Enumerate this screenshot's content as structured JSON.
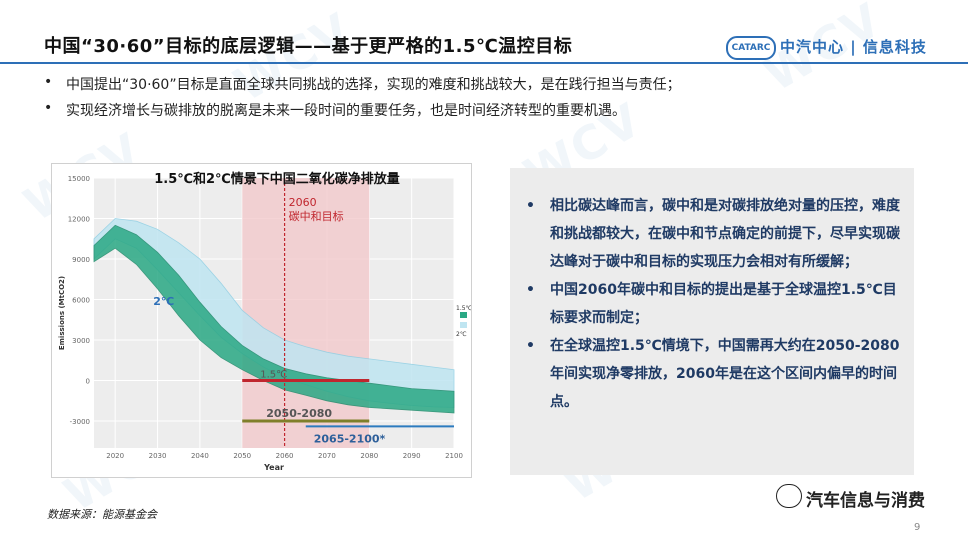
{
  "header": {
    "title": "中国“30·60”目标的底层逻辑——基于更严格的1.5℃温控目标",
    "logo_badge": "CATARC",
    "logo_text": "中汽中心 | 信息科技"
  },
  "bullets_top": [
    "中国提出“30·60”目标是直面全球共同挑战的选择，实现的难度和挑战较大，是在践行担当与责任；",
    "实现经济增长与碳排放的脱离是未来一段时间的重要任务，也是时间经济转型的重要机遇。"
  ],
  "bullet_char": "•",
  "chart_data": {
    "type": "area",
    "title": "1.5℃和2℃情景下中国二氧化碳净排放量",
    "xlabel": "Year",
    "ylabel": "Emissions (MtCO2)",
    "xlim": [
      2015,
      2100
    ],
    "ylim": [
      -5000,
      15000
    ],
    "xticks": [
      2020,
      2030,
      2040,
      2050,
      2060,
      2070,
      2080,
      2090,
      2100
    ],
    "yticks": [
      15000,
      12000,
      9000,
      6000,
      3000,
      0,
      -3000
    ],
    "legend": [
      "1.5℃",
      "2℃"
    ],
    "legend_position": "right",
    "colors": {
      "s15": "#2aa884",
      "s2": "#bfe5f1",
      "highlight": "#f2c6c8",
      "marker": "#c0262e",
      "bar2050": "#7f7f2a",
      "bar2065": "#2d7bbf"
    },
    "highlight_range": [
      2050,
      2080
    ],
    "vline_x": 2060,
    "vline_label_1": "2060",
    "vline_label_2": "碳中和目标",
    "series_2": {
      "name": "2℃",
      "x": [
        2015,
        2020,
        2025,
        2030,
        2035,
        2040,
        2045,
        2050,
        2055,
        2060,
        2065,
        2070,
        2075,
        2080,
        2085,
        2090,
        2095,
        2100
      ],
      "upper": [
        10500,
        12000,
        11800,
        11200,
        10200,
        9000,
        7200,
        5200,
        3900,
        3000,
        2500,
        2100,
        1800,
        1600,
        1400,
        1200,
        1000,
        800
      ],
      "lower": [
        9000,
        10500,
        9800,
        8200,
        6500,
        4800,
        3200,
        2000,
        1000,
        200,
        -300,
        -800,
        -1200,
        -1500,
        -1700,
        -1850,
        -1950,
        -2000
      ]
    },
    "series_15": {
      "name": "1.5℃",
      "x": [
        2015,
        2020,
        2025,
        2030,
        2035,
        2040,
        2045,
        2050,
        2055,
        2060,
        2065,
        2070,
        2075,
        2080,
        2085,
        2090,
        2095,
        2100
      ],
      "upper": [
        10000,
        11500,
        10800,
        9500,
        7800,
        5800,
        4000,
        2600,
        1600,
        900,
        500,
        200,
        0,
        -200,
        -400,
        -600,
        -700,
        -800
      ],
      "lower": [
        8800,
        9800,
        8600,
        6800,
        4800,
        3000,
        1700,
        800,
        0,
        -700,
        -1100,
        -1500,
        -1800,
        -2000,
        -2100,
        -2200,
        -2300,
        -2400
      ]
    },
    "label_2": "2℃",
    "label_15": "1.5℃",
    "bar_2050_2080": {
      "label": "2050-2080",
      "x": [
        2050,
        2080
      ],
      "y": -3000
    },
    "bar_2065_2100": {
      "label": "2065-2100*",
      "x": [
        2065,
        2100
      ],
      "y": -3400
    },
    "bar_15_target": {
      "x": [
        2050,
        2080
      ],
      "y": 0
    }
  },
  "panel_bullets": [
    "相比碳达峰而言，碳中和是对碳排放绝对量的压控，难度和挑战都较大，在碳中和节点确定的前提下，尽早实现碳达峰对于碳中和目标的实现压力会相对有所缓解；",
    "中国2060年碳中和目标的提出是基于全球温控1.5℃目标要求而制定；",
    "在全球温控1.5℃情境下，中国需再大约在2050-2080年间实现净零排放，2060年是在这个区间内偏早的时间点。"
  ],
  "footer": {
    "source": "数据来源：能源基金会"
  },
  "wechat": {
    "text": "汽车信息与消费"
  },
  "page_number": "9",
  "watermark": [
    "WCV",
    "WCV",
    "WCV",
    "WCV",
    "WCV",
    "WCV"
  ]
}
